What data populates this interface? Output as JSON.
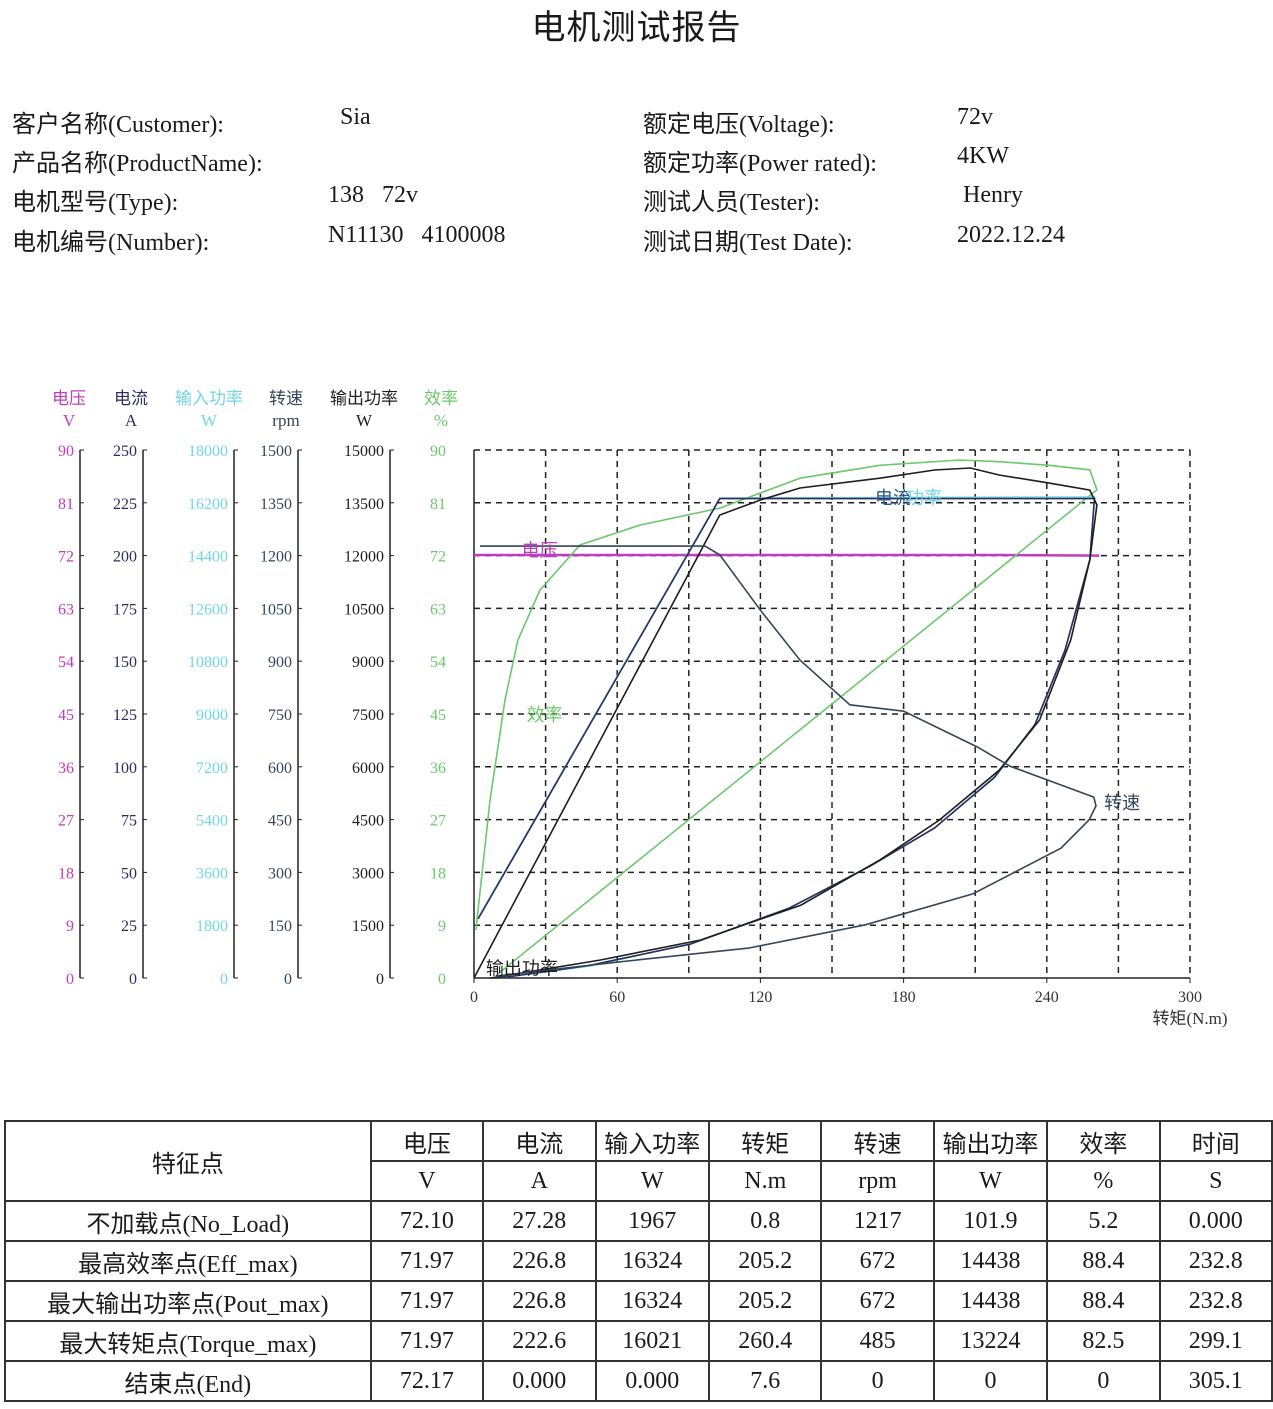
{
  "title": "电机测试报告",
  "info": {
    "left": [
      {
        "label": "客户名称(Customer):",
        "value": "Sia"
      },
      {
        "label": "产品名称(ProductName):",
        "value": ""
      },
      {
        "label": "电机型号(Type):",
        "value": "138   72v"
      },
      {
        "label": "电机编号(Number):",
        "value": "N11130   4100008"
      }
    ],
    "right": [
      {
        "label": "额定电压(Voltage):",
        "value": "72v"
      },
      {
        "label": "额定功率(Power rated):",
        "value": "4KW"
      },
      {
        "label": "测试人员(Tester):",
        "value": " Henry"
      },
      {
        "label": "测试日期(Test Date):",
        "value": "2022.12.24"
      }
    ]
  },
  "chart_data": {
    "type": "line",
    "xlabel": "转矩(N.m)",
    "xlim": [
      0,
      300
    ],
    "xticks": [
      0,
      60,
      120,
      180,
      240,
      300
    ],
    "grid": true,
    "y_axes": [
      {
        "name": "电压",
        "unit": "V",
        "min": 0,
        "max": 90,
        "ticks": [
          0,
          9,
          18,
          27,
          36,
          45,
          54,
          63,
          72,
          81,
          90
        ],
        "color": "#c03cc0"
      },
      {
        "name": "电流",
        "unit": "A",
        "min": 0,
        "max": 250,
        "ticks": [
          0,
          25,
          50,
          75,
          100,
          125,
          150,
          175,
          200,
          225,
          250
        ],
        "color": "#2c2c60"
      },
      {
        "name": "输入功率",
        "unit": "W",
        "min": 0,
        "max": 18000,
        "ticks": [
          0,
          1800,
          3600,
          5400,
          7200,
          9000,
          10800,
          12600,
          14400,
          16200,
          18000
        ],
        "color": "#72d6e2"
      },
      {
        "name": "转速",
        "unit": "rpm",
        "min": 0,
        "max": 1500,
        "ticks": [
          0,
          150,
          300,
          450,
          600,
          750,
          900,
          1050,
          1200,
          1350,
          1500
        ],
        "color": "#34465a"
      },
      {
        "name": "输出功率",
        "unit": "W",
        "min": 0,
        "max": 15000,
        "ticks": [
          0,
          1500,
          3000,
          4500,
          6000,
          7500,
          9000,
          10500,
          12000,
          13500,
          15000
        ],
        "color": "#1e1e1e"
      },
      {
        "name": "效率",
        "unit": "%",
        "min": 0,
        "max": 90,
        "ticks": [
          0,
          9,
          18,
          27,
          36,
          45,
          54,
          63,
          72,
          81,
          90
        ],
        "color": "#6cc86c"
      }
    ],
    "series": [
      {
        "name": "电压",
        "axis": 0,
        "points": [
          [
            0,
            72.1
          ],
          [
            222,
            72.1
          ],
          [
            262,
            72.0
          ]
        ]
      },
      {
        "name": "效率",
        "axis": 5,
        "points": [
          [
            0.8,
            8.2
          ],
          [
            6.7,
            30.3
          ],
          [
            13,
            47.4
          ],
          [
            18.4,
            57.6
          ],
          [
            27.6,
            66.1
          ],
          [
            44.4,
            73.8
          ],
          [
            69.5,
            77.2
          ],
          [
            103,
            80.1
          ],
          [
            136.6,
            85.2
          ],
          [
            170,
            87.4
          ],
          [
            203.6,
            88.3
          ],
          [
            220,
            88.0
          ],
          [
            241,
            87.4
          ],
          [
            258,
            86.6
          ],
          [
            261,
            83.2
          ],
          [
            10,
            0.7
          ]
        ]
      },
      {
        "name": "功率",
        "axis": 2,
        "points": [
          [
            1.7,
            2045
          ],
          [
            103,
            16364
          ],
          [
            260,
            16398
          ],
          [
            258,
            14250
          ],
          [
            247.6,
            11182
          ],
          [
            235,
            8625
          ],
          [
            218,
            6818
          ],
          [
            193,
            5114
          ],
          [
            166,
            3818
          ],
          [
            132,
            2386
          ],
          [
            90.5,
            1159
          ],
          [
            48.6,
            409
          ],
          [
            10.9,
            0
          ]
        ]
      },
      {
        "name": "电流",
        "axis": 1,
        "points": [
          [
            1.7,
            28
          ],
          [
            103,
            227
          ],
          [
            260,
            227
          ],
          [
            258,
            198
          ],
          [
            247.6,
            155
          ],
          [
            235,
            120
          ],
          [
            218,
            95
          ],
          [
            193,
            71
          ],
          [
            166,
            53
          ],
          [
            132,
            33
          ],
          [
            90.5,
            16
          ],
          [
            48.6,
            6
          ],
          [
            10.9,
            0
          ]
        ]
      },
      {
        "name": "输出功率",
        "axis": 4,
        "points": [
          [
            0,
            0
          ],
          [
            103,
            13153
          ],
          [
            120,
            13580
          ],
          [
            136.6,
            13920
          ],
          [
            170,
            14200
          ],
          [
            193,
            14432
          ],
          [
            208,
            14490
          ],
          [
            220,
            14290
          ],
          [
            241,
            14060
          ],
          [
            258,
            13860
          ],
          [
            261,
            13440
          ],
          [
            258,
            11875
          ],
          [
            250,
            9600
          ],
          [
            237,
            7330
          ],
          [
            220,
            5900
          ],
          [
            195,
            4490
          ],
          [
            170,
            3350
          ],
          [
            137,
            2070
          ],
          [
            95,
            1080
          ],
          [
            53,
            511
          ],
          [
            7,
            0
          ]
        ]
      },
      {
        "name": "转速",
        "axis": 3,
        "points": [
          [
            2.5,
            1227
          ],
          [
            96.8,
            1227
          ],
          [
            103,
            1202
          ],
          [
            120,
            1045
          ],
          [
            136.6,
            903
          ],
          [
            157.5,
            776
          ],
          [
            180,
            758
          ],
          [
            211,
            656
          ],
          [
            224.5,
            602
          ],
          [
            259.7,
            514
          ],
          [
            260.6,
            489
          ],
          [
            257.7,
            449
          ],
          [
            246,
            369
          ],
          [
            209,
            239
          ],
          [
            164,
            151
          ],
          [
            115,
            85
          ],
          [
            57,
            43
          ],
          [
            10,
            6
          ]
        ]
      }
    ],
    "annotations": [
      {
        "text": "电压",
        "x": 20,
        "y_axis": 0,
        "y": 73,
        "color": "#c03cc0"
      },
      {
        "text": "效率",
        "x": 22,
        "y_axis": 5,
        "y": 45,
        "color": "#6cc86c"
      },
      {
        "text": "输出功率",
        "x": 5,
        "y_axis": 4,
        "y": 300,
        "color": "#1e1e1e"
      },
      {
        "text": "转速",
        "x": 264,
        "y_axis": 3,
        "y": 500,
        "color": "#34465a"
      },
      {
        "text": "电流",
        "x": 168,
        "y_axis": 2,
        "y": 16400,
        "color": "#2c5a8c"
      },
      {
        "text": "功率",
        "x": 181,
        "y_axis": 2,
        "y": 16400,
        "color": "#72d6e2"
      }
    ]
  },
  "table": {
    "header1": [
      "特征点",
      "电压",
      "电流",
      "输入功率",
      "转矩",
      "转速",
      "输出功率",
      "效率",
      "时间"
    ],
    "header2": [
      "V",
      "A",
      "W",
      "N.m",
      "rpm",
      "W",
      "%",
      "S"
    ],
    "rows": [
      [
        "不加载点(No_Load)",
        "72.10",
        "27.28",
        "1967",
        "0.8",
        "1217",
        "101.9",
        "5.2",
        "0.000"
      ],
      [
        "最高效率点(Eff_max)",
        "71.97",
        "226.8",
        "16324",
        "205.2",
        "672",
        "14438",
        "88.4",
        "232.8"
      ],
      [
        "最大输出功率点(Pout_max)",
        "71.97",
        "226.8",
        "16324",
        "205.2",
        "672",
        "14438",
        "88.4",
        "232.8"
      ],
      [
        "最大转矩点(Torque_max)",
        "71.97",
        "222.6",
        "16021",
        "260.4",
        "485",
        "13224",
        "82.5",
        "299.1"
      ],
      [
        "结束点(End)",
        "72.17",
        "0.000",
        "0.000",
        "7.6",
        "0",
        "0",
        "0",
        "305.1"
      ]
    ]
  }
}
